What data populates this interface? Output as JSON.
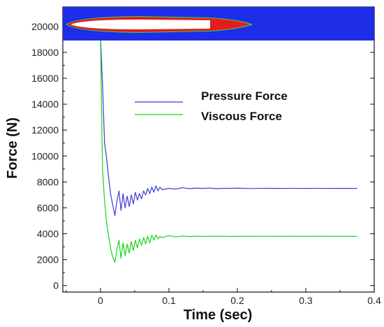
{
  "chart_data": {
    "type": "line",
    "xlabel": "Time (sec)",
    "ylabel": "Force (N)",
    "xlim": [
      -0.055,
      0.4
    ],
    "ylim": [
      -500,
      21500
    ],
    "x_ticks": [
      0,
      0.1,
      0.2,
      0.3,
      0.4
    ],
    "x_tick_labels": [
      "0",
      "0.1",
      "0.2",
      "0.3",
      "0.4"
    ],
    "y_ticks": [
      0,
      2000,
      4000,
      6000,
      8000,
      10000,
      12000,
      14000,
      16000,
      18000,
      20000
    ],
    "y_tick_labels": [
      "0",
      "2000",
      "4000",
      "6000",
      "8000",
      "10000",
      "12000",
      "14000",
      "16000",
      "18000",
      "20000"
    ],
    "legend_position": "center",
    "series": [
      {
        "name": "Pressure Force",
        "color": "#3b3bd9",
        "x": [
          0.0,
          0.003,
          0.006,
          0.009,
          0.012,
          0.015,
          0.018,
          0.021,
          0.024,
          0.027,
          0.03,
          0.033,
          0.036,
          0.039,
          0.042,
          0.045,
          0.048,
          0.051,
          0.054,
          0.057,
          0.06,
          0.063,
          0.066,
          0.069,
          0.072,
          0.075,
          0.078,
          0.081,
          0.084,
          0.087,
          0.09,
          0.1,
          0.11,
          0.12,
          0.13,
          0.14,
          0.15,
          0.16,
          0.17,
          0.18,
          0.19,
          0.2,
          0.22,
          0.24,
          0.26,
          0.28,
          0.3,
          0.32,
          0.34,
          0.36,
          0.375
        ],
        "y": [
          19200,
          15500,
          11000,
          9800,
          8300,
          7000,
          6200,
          5400,
          6500,
          7300,
          5800,
          7100,
          6000,
          6900,
          6100,
          7000,
          6300,
          7200,
          6600,
          7100,
          6700,
          7300,
          7000,
          7500,
          7100,
          7600,
          7200,
          7700,
          7300,
          7600,
          7400,
          7500,
          7450,
          7550,
          7480,
          7520,
          7500,
          7530,
          7480,
          7510,
          7500,
          7520,
          7490,
          7510,
          7500,
          7505,
          7500,
          7505,
          7500,
          7500,
          7500
        ]
      },
      {
        "name": "Viscous Force",
        "color": "#19d419",
        "x": [
          0.0,
          0.003,
          0.006,
          0.009,
          0.012,
          0.015,
          0.018,
          0.021,
          0.024,
          0.027,
          0.03,
          0.033,
          0.036,
          0.039,
          0.042,
          0.045,
          0.048,
          0.051,
          0.054,
          0.057,
          0.06,
          0.063,
          0.066,
          0.069,
          0.072,
          0.075,
          0.078,
          0.081,
          0.084,
          0.087,
          0.09,
          0.1,
          0.11,
          0.12,
          0.13,
          0.14,
          0.15,
          0.16,
          0.17,
          0.18,
          0.19,
          0.2,
          0.22,
          0.24,
          0.26,
          0.28,
          0.3,
          0.32,
          0.34,
          0.36,
          0.375
        ],
        "y": [
          19000,
          9000,
          6500,
          4800,
          3800,
          2800,
          2200,
          1800,
          2800,
          3500,
          2100,
          3300,
          2300,
          3200,
          2500,
          3400,
          2700,
          3500,
          2900,
          3600,
          3100,
          3700,
          3200,
          3800,
          3300,
          3900,
          3500,
          3900,
          3600,
          3800,
          3700,
          3850,
          3750,
          3830,
          3780,
          3820,
          3790,
          3810,
          3800,
          3810,
          3790,
          3800,
          3800,
          3810,
          3800,
          3805,
          3800,
          3805,
          3800,
          3800,
          3800
        ]
      }
    ]
  },
  "inset": {
    "background_color": "#1e2de8",
    "body_color": "#ffffff",
    "outline_color": "#d91e1e",
    "wake_color": "#e81b1b",
    "edge_color": "#2cd94a"
  }
}
